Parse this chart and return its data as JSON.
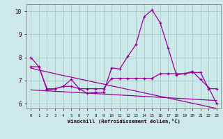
{
  "xlabel": "Windchill (Refroidissement éolien,°C)",
  "background_color": "#cce8e8",
  "grid_color": "#aacccc",
  "line_color": "#990099",
  "x": [
    0,
    1,
    2,
    3,
    4,
    5,
    6,
    7,
    8,
    9,
    10,
    11,
    12,
    13,
    14,
    15,
    16,
    17,
    18,
    19,
    20,
    21,
    22,
    23
  ],
  "y_main": [
    8.0,
    7.6,
    6.6,
    6.65,
    6.75,
    7.05,
    6.65,
    6.45,
    6.5,
    6.5,
    7.55,
    7.5,
    8.05,
    8.55,
    9.75,
    10.05,
    9.5,
    8.4,
    7.25,
    7.3,
    7.4,
    7.05,
    6.7,
    6.0
  ],
  "y_smooth1": [
    7.6,
    7.6,
    6.65,
    6.65,
    6.75,
    6.75,
    6.65,
    6.65,
    6.65,
    6.65,
    7.1,
    7.1,
    7.1,
    7.1,
    7.1,
    7.1,
    7.3,
    7.3,
    7.3,
    7.3,
    7.35,
    7.35,
    6.65,
    6.65
  ],
  "y_linear1": [
    7.55,
    7.45,
    7.38,
    7.3,
    7.22,
    7.15,
    7.07,
    7.0,
    6.92,
    6.85,
    6.77,
    6.7,
    6.62,
    6.55,
    6.47,
    6.4,
    6.32,
    6.25,
    6.17,
    6.1,
    6.02,
    5.95,
    5.87,
    5.8
  ],
  "y_linear2": [
    6.6,
    6.58,
    6.56,
    6.54,
    6.52,
    6.5,
    6.48,
    6.46,
    6.44,
    6.42,
    6.4,
    6.38,
    6.36,
    6.34,
    6.32,
    6.3,
    6.28,
    6.26,
    6.24,
    6.22,
    6.2,
    6.18,
    6.16,
    6.14
  ],
  "ylim": [
    5.8,
    10.3
  ],
  "xlim": [
    -0.5,
    23.5
  ],
  "yticks": [
    6,
    7,
    8,
    9,
    10
  ],
  "xticks": [
    0,
    1,
    2,
    3,
    4,
    5,
    6,
    7,
    8,
    9,
    10,
    11,
    12,
    13,
    14,
    15,
    16,
    17,
    18,
    19,
    20,
    21,
    22,
    23
  ]
}
